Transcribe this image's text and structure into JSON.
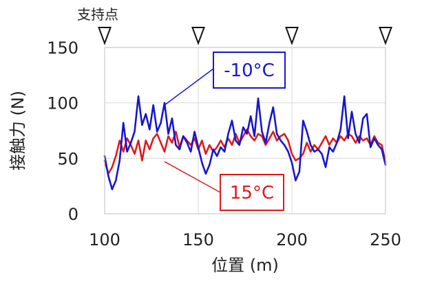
{
  "chart_data": {
    "type": "line",
    "xlabel": "位置 (m)",
    "ylabel": "接触力 (N)",
    "xlim": [
      100,
      250
    ],
    "ylim": [
      0,
      150
    ],
    "x_ticks": [
      100,
      150,
      200,
      250
    ],
    "y_ticks": [
      0,
      50,
      100,
      150
    ],
    "x_tick_labels": [
      "100",
      "150",
      "200",
      "250"
    ],
    "y_tick_labels": [
      "0",
      "50",
      "100",
      "150"
    ],
    "grid": true,
    "support_points": {
      "label": "支持点",
      "positions": [
        100,
        150,
        200,
        250
      ]
    },
    "series": [
      {
        "name": "15°C",
        "color": "#e01a1a",
        "x": [
          100,
          102,
          104,
          106,
          108,
          110,
          112,
          114,
          116,
          118,
          120,
          122,
          124,
          126,
          128,
          130,
          132,
          134,
          136,
          138,
          140,
          142,
          144,
          146,
          148,
          150,
          152,
          154,
          156,
          158,
          160,
          162,
          164,
          166,
          168,
          170,
          172,
          174,
          176,
          178,
          180,
          182,
          184,
          186,
          188,
          190,
          192,
          194,
          196,
          198,
          200,
          202,
          204,
          206,
          208,
          210,
          212,
          214,
          216,
          218,
          220,
          222,
          224,
          226,
          228,
          230,
          232,
          234,
          236,
          238,
          240,
          242,
          244,
          246,
          248,
          250
        ],
        "values": [
          48,
          36,
          42,
          52,
          66,
          56,
          68,
          62,
          54,
          66,
          48,
          66,
          58,
          68,
          72,
          64,
          56,
          70,
          64,
          74,
          60,
          70,
          66,
          62,
          68,
          58,
          66,
          54,
          62,
          56,
          60,
          66,
          60,
          68,
          62,
          72,
          64,
          70,
          76,
          70,
          66,
          72,
          70,
          62,
          68,
          74,
          66,
          70,
          72,
          66,
          54,
          48,
          50,
          54,
          64,
          56,
          62,
          58,
          64,
          70,
          62,
          68,
          64,
          70,
          66,
          72,
          70,
          64,
          70,
          66,
          68,
          62,
          70,
          64,
          62,
          46
        ]
      },
      {
        "name": "-10°C",
        "color": "#1515d4",
        "x": [
          100,
          102,
          104,
          106,
          108,
          110,
          112,
          114,
          116,
          118,
          120,
          122,
          124,
          126,
          128,
          130,
          132,
          134,
          136,
          138,
          140,
          142,
          144,
          146,
          148,
          150,
          152,
          154,
          156,
          158,
          160,
          162,
          164,
          166,
          168,
          170,
          172,
          174,
          176,
          178,
          180,
          182,
          184,
          186,
          188,
          190,
          192,
          194,
          196,
          198,
          200,
          202,
          204,
          206,
          208,
          210,
          212,
          214,
          216,
          218,
          220,
          222,
          224,
          226,
          228,
          230,
          232,
          234,
          236,
          238,
          240,
          242,
          244,
          246,
          248,
          250
        ],
        "values": [
          52,
          34,
          22,
          30,
          48,
          82,
          56,
          64,
          74,
          106,
          80,
          90,
          76,
          98,
          74,
          82,
          100,
          72,
          86,
          62,
          58,
          70,
          64,
          56,
          74,
          60,
          46,
          36,
          44,
          58,
          52,
          60,
          56,
          72,
          84,
          66,
          62,
          78,
          72,
          88,
          70,
          104,
          74,
          64,
          82,
          96,
          72,
          66,
          62,
          56,
          46,
          30,
          38,
          84,
          74,
          62,
          56,
          58,
          54,
          42,
          60,
          56,
          64,
          76,
          106,
          68,
          92,
          72,
          64,
          86,
          90,
          60,
          68,
          62,
          58,
          44
        ]
      }
    ],
    "annotations": [
      {
        "text": "-10°C",
        "series": "-10°C",
        "anchor_x": 132,
        "anchor_y": 98
      },
      {
        "text": "15°C",
        "series": "15°C",
        "anchor_x": 132,
        "anchor_y": 47
      }
    ]
  }
}
